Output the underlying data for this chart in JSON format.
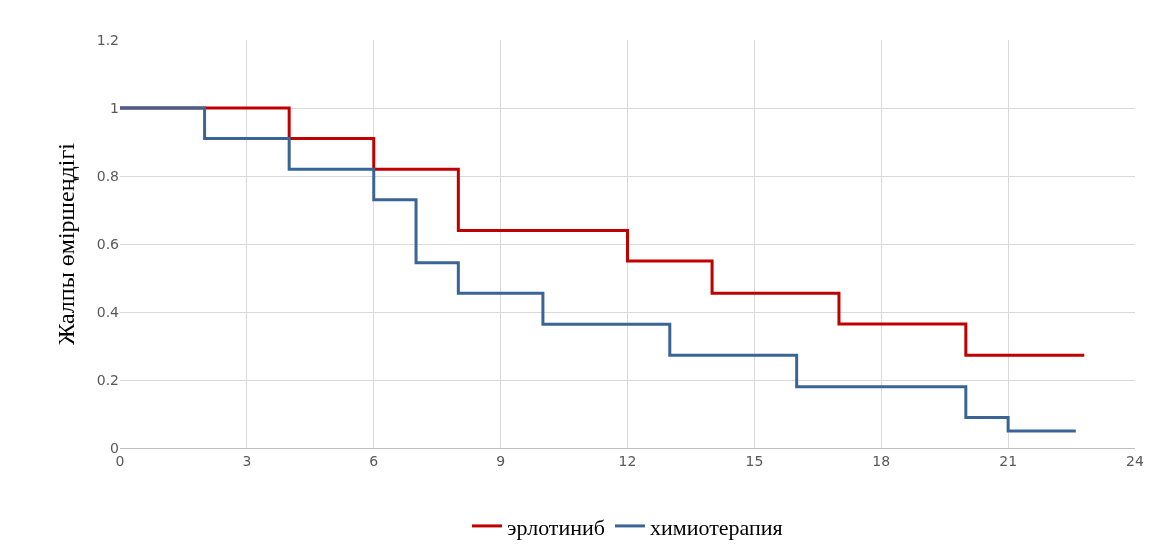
{
  "chart_data": {
    "type": "step",
    "ylabel": "Жалпы өміршеңдігі",
    "series": [
      {
        "name": "эрлотиниб",
        "color": "#c00000",
        "x": [
          0,
          4,
          6,
          8,
          12,
          14,
          17,
          20,
          22.8
        ],
        "values": [
          1,
          0.91,
          0.82,
          0.64,
          0.55,
          0.455,
          0.365,
          0.273,
          0.273
        ]
      },
      {
        "name": "химиотерапия",
        "color": "#3a6496",
        "x": [
          0,
          2,
          4,
          6,
          7,
          8,
          10,
          13,
          16,
          20,
          21,
          22.6
        ],
        "values": [
          1,
          0.91,
          0.82,
          0.73,
          0.545,
          0.455,
          0.364,
          0.273,
          0.18,
          0.09,
          0.05,
          0.05
        ]
      }
    ],
    "xlim": [
      0,
      24
    ],
    "xticks": [
      0,
      3,
      6,
      9,
      12,
      15,
      18,
      21,
      24
    ],
    "ylim": [
      0,
      1.2
    ],
    "yticks": [
      0,
      0.2,
      0.4,
      0.6,
      0.8,
      1,
      1.2
    ],
    "grid": true,
    "legend": "bottom",
    "marker": "none",
    "line_style": "solid"
  }
}
